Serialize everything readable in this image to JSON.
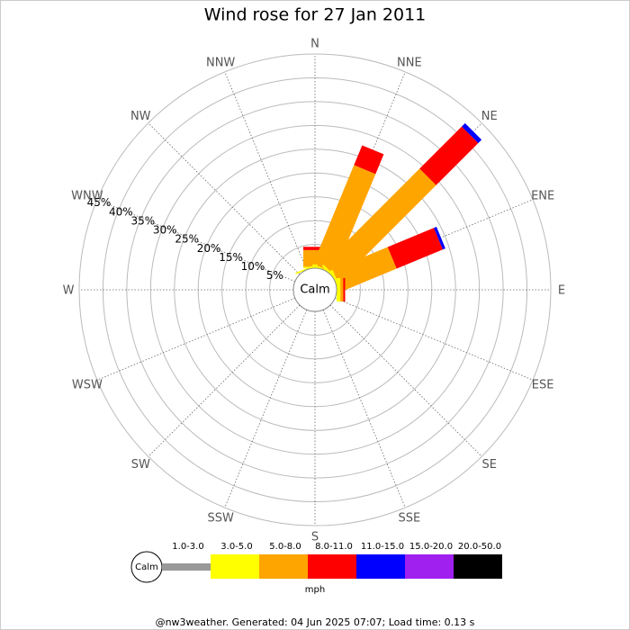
{
  "chart_data": {
    "type": "windrose",
    "title": "Wind rose for 27 Jan 2011",
    "calm_label": "Calm",
    "unit": "mph",
    "footer": "@nw3weather. Generated: 04 Jun 2025 07:07; Load time: 0.13 s",
    "directions": [
      "N",
      "NNE",
      "NE",
      "ENE",
      "E",
      "ESE",
      "SE",
      "SSE",
      "S",
      "SSW",
      "SW",
      "WSW",
      "W",
      "WNW",
      "NW",
      "NNW"
    ],
    "rlim": [
      0,
      45
    ],
    "rticks": [
      {
        "value": 5,
        "label": "5%"
      },
      {
        "value": 10,
        "label": "10%"
      },
      {
        "value": 15,
        "label": "15%"
      },
      {
        "value": 20,
        "label": "20%"
      },
      {
        "value": 25,
        "label": "25%"
      },
      {
        "value": 30,
        "label": "30%"
      },
      {
        "value": 35,
        "label": "35%"
      },
      {
        "value": 40,
        "label": "40%"
      },
      {
        "value": 45,
        "label": "45%"
      }
    ],
    "series": [
      {
        "name": "1.0-3.0",
        "color": "#999999",
        "values": [
          0,
          0,
          0,
          0,
          0,
          0,
          0,
          0,
          0,
          0,
          0,
          0,
          0,
          0,
          0,
          0
        ]
      },
      {
        "name": "3.0-5.0",
        "color": "#ffff00",
        "values": [
          0.3,
          0.3,
          0.5,
          0.5,
          0.8,
          0,
          0,
          0,
          0,
          0,
          0,
          0,
          0,
          0,
          0,
          0.3
        ]
      },
      {
        "name": "5.0-8.0",
        "color": "#ffa500",
        "values": [
          3.5,
          22.5,
          28.5,
          12.5,
          0.6,
          0,
          0,
          0,
          0,
          0,
          0,
          0,
          0,
          0,
          0,
          0
        ]
      },
      {
        "name": "8.0-11.0",
        "color": "#ff0000",
        "values": [
          0.7,
          4.5,
          12.5,
          10.5,
          0.4,
          0,
          0,
          0,
          0,
          0,
          0,
          0,
          0,
          0,
          0,
          0
        ]
      },
      {
        "name": "11.0-15.0",
        "color": "#0000ff",
        "values": [
          0,
          0,
          1.0,
          0.6,
          0,
          0,
          0,
          0,
          0,
          0,
          0,
          0,
          0,
          0,
          0,
          0
        ]
      },
      {
        "name": "15.0-20.0",
        "color": "#a020f0",
        "values": [
          0,
          0,
          0,
          0,
          0,
          0,
          0,
          0,
          0,
          0,
          0,
          0,
          0,
          0,
          0,
          0
        ]
      },
      {
        "name": "20.0-50.0",
        "color": "#000000",
        "values": [
          0,
          0,
          0,
          0,
          0,
          0,
          0,
          0,
          0,
          0,
          0,
          0,
          0,
          0,
          0,
          0
        ]
      }
    ]
  }
}
